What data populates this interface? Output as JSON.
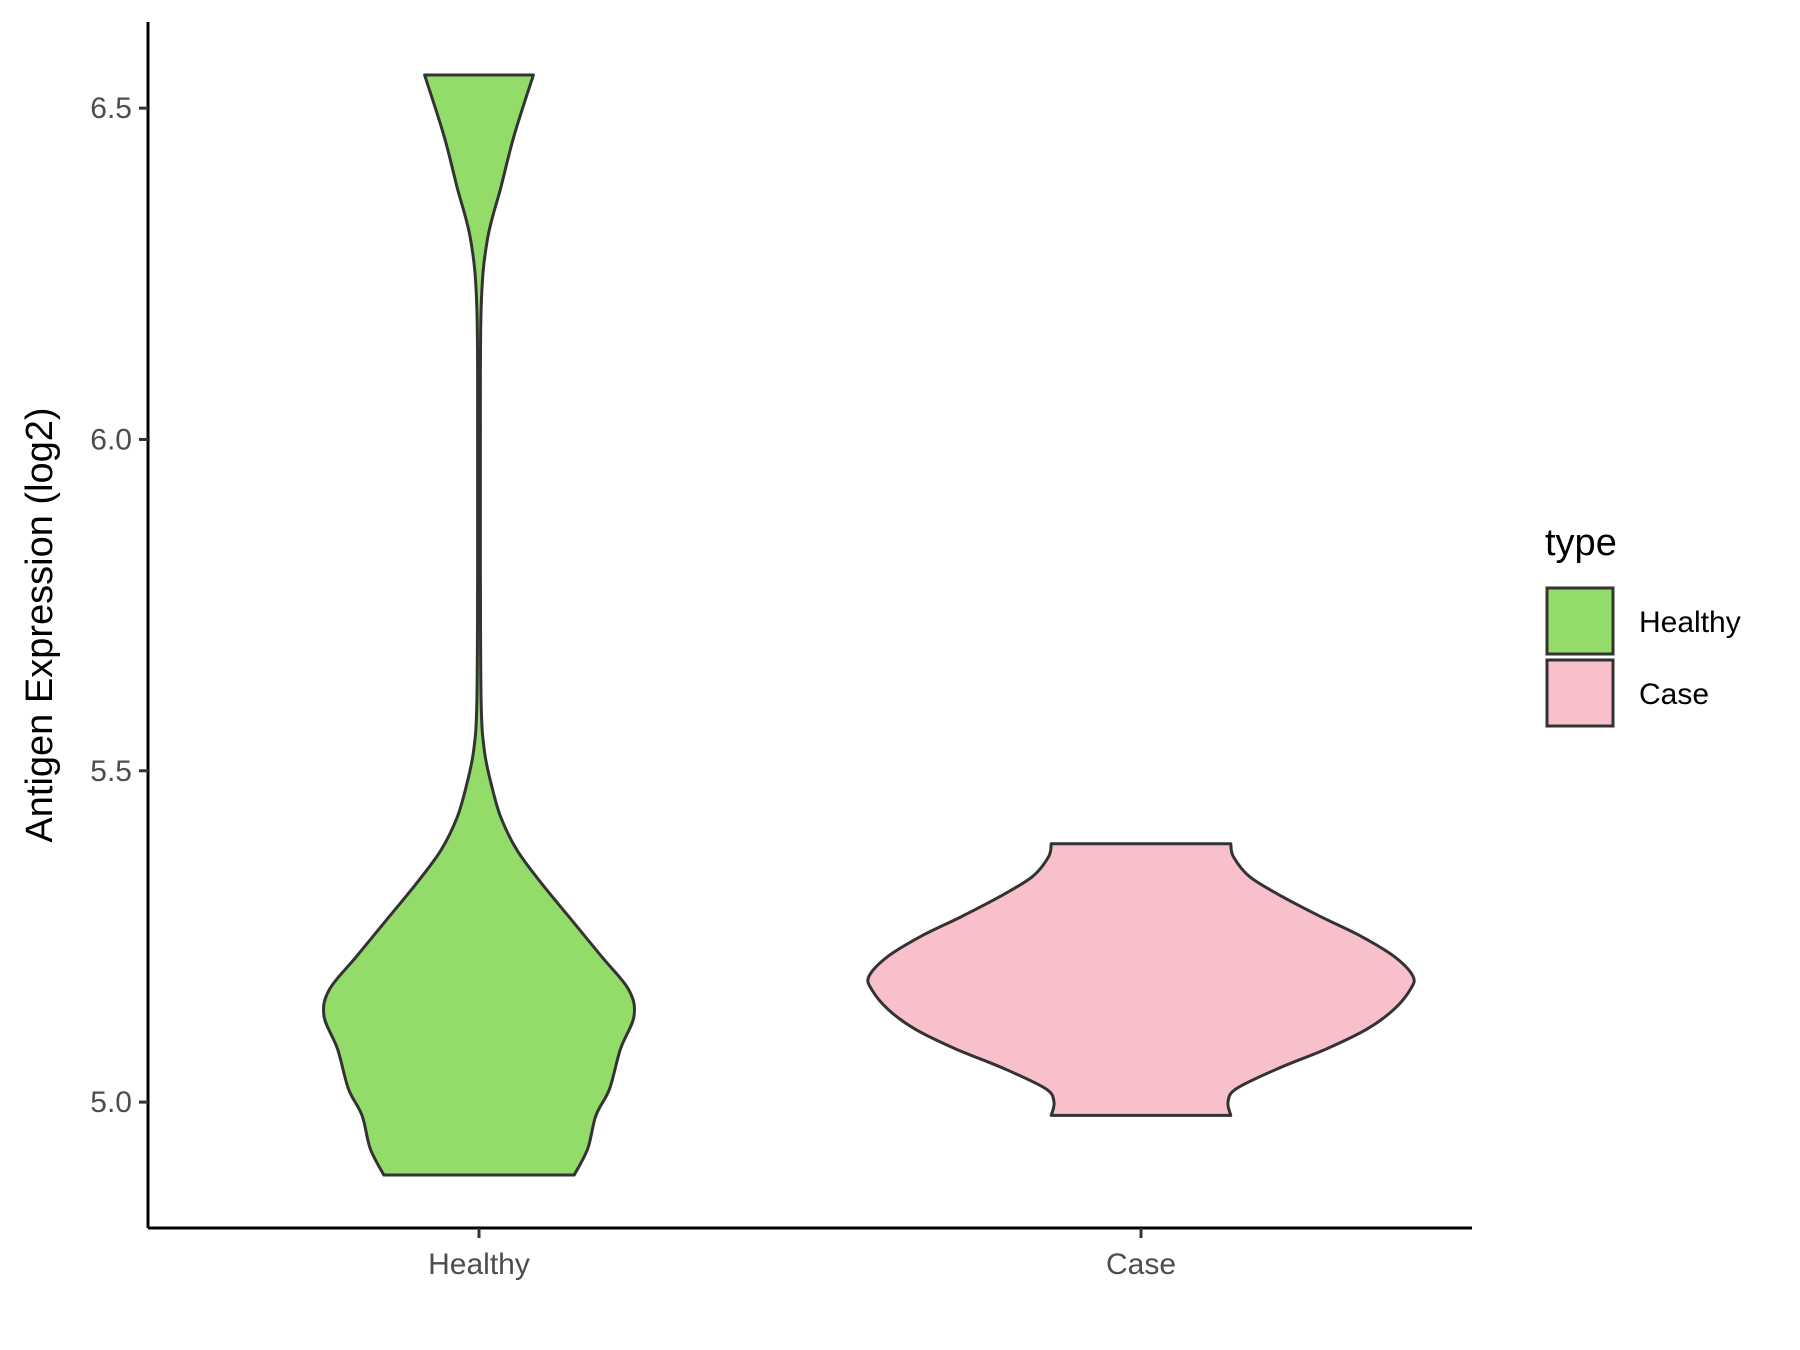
{
  "chart_data": {
    "type": "violin",
    "ylabel": "Antigen Expression (log2)",
    "xlabel": "",
    "categories": [
      "Healthy",
      "Case"
    ],
    "y_ticks": [
      5.0,
      5.5,
      6.0,
      6.5
    ],
    "y_tick_labels": [
      "5.0",
      "5.5",
      "6.0",
      "6.5"
    ],
    "ylim": [
      4.81,
      6.63
    ],
    "legend": {
      "title": "type",
      "position": "right",
      "entries": [
        "Healthy",
        "Case"
      ]
    },
    "grid": false,
    "series": [
      {
        "name": "Healthy",
        "color": "#93dc6a",
        "min": 4.89,
        "max": 6.55,
        "density_profile": [
          [
            4.89,
            0.35
          ],
          [
            4.93,
            0.4
          ],
          [
            4.98,
            0.43
          ],
          [
            5.02,
            0.48
          ],
          [
            5.08,
            0.52
          ],
          [
            5.13,
            0.57
          ],
          [
            5.17,
            0.55
          ],
          [
            5.22,
            0.45
          ],
          [
            5.28,
            0.33
          ],
          [
            5.33,
            0.23
          ],
          [
            5.38,
            0.14
          ],
          [
            5.43,
            0.08
          ],
          [
            5.48,
            0.045
          ],
          [
            5.53,
            0.02
          ],
          [
            5.6,
            0.008
          ],
          [
            5.8,
            0.005
          ],
          [
            6.0,
            0.005
          ],
          [
            6.2,
            0.008
          ],
          [
            6.3,
            0.03
          ],
          [
            6.38,
            0.08
          ],
          [
            6.46,
            0.13
          ],
          [
            6.55,
            0.2
          ]
        ]
      },
      {
        "name": "Case",
        "color": "#f8c0cb",
        "min": 4.98,
        "max": 5.39,
        "density_profile": [
          [
            4.98,
            0.33
          ],
          [
            5.0,
            0.32
          ],
          [
            5.02,
            0.35
          ],
          [
            5.05,
            0.5
          ],
          [
            5.08,
            0.68
          ],
          [
            5.11,
            0.83
          ],
          [
            5.14,
            0.93
          ],
          [
            5.17,
            0.99
          ],
          [
            5.19,
            1.0
          ],
          [
            5.22,
            0.93
          ],
          [
            5.25,
            0.81
          ],
          [
            5.28,
            0.66
          ],
          [
            5.31,
            0.52
          ],
          [
            5.34,
            0.4
          ],
          [
            5.37,
            0.34
          ],
          [
            5.39,
            0.33
          ]
        ]
      }
    ]
  }
}
